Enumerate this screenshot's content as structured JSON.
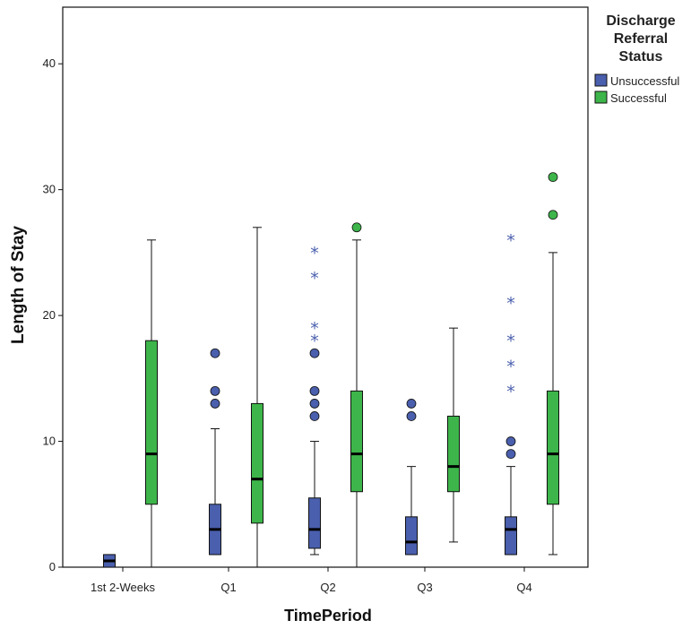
{
  "chart_data": {
    "type": "boxplot",
    "xlabel": "TimePeriod",
    "ylabel": "Length of Stay",
    "categories": [
      "1st 2-Weeks",
      "Q1",
      "Q2",
      "Q3",
      "Q4"
    ],
    "y_ticks": [
      0,
      10,
      20,
      30,
      40
    ],
    "ylim": [
      0,
      44.5
    ],
    "grid": false,
    "legend": {
      "title_lines": [
        "Discharge",
        "Referral",
        "Status"
      ],
      "placement": "right"
    },
    "series": [
      {
        "name": "Unsuccessful",
        "color": "#4a5fad",
        "boxes": [
          {
            "min": 0,
            "q1": 0,
            "median": 0.5,
            "q3": 1,
            "max": 1,
            "outliers": [],
            "extremes": []
          },
          {
            "min": 1,
            "q1": 1,
            "median": 3,
            "q3": 5,
            "max": 11,
            "outliers": [
              13,
              14,
              17
            ],
            "extremes": []
          },
          {
            "min": 1,
            "q1": 1.5,
            "median": 3,
            "q3": 5.5,
            "max": 10,
            "outliers": [
              12,
              13,
              14,
              17
            ],
            "extremes": [
              18,
              19,
              23,
              25
            ]
          },
          {
            "min": 1,
            "q1": 1,
            "median": 2,
            "q3": 4,
            "max": 8,
            "outliers": [
              12,
              13
            ],
            "extremes": []
          },
          {
            "min": 1,
            "q1": 1,
            "median": 3,
            "q3": 4,
            "max": 8,
            "outliers": [
              9,
              10
            ],
            "extremes": [
              14,
              16,
              18,
              21,
              26
            ]
          }
        ]
      },
      {
        "name": "Successful",
        "color": "#3db54a",
        "boxes": [
          {
            "min": 0,
            "q1": 5,
            "median": 9,
            "q3": 18,
            "max": 26,
            "outliers": [],
            "extremes": []
          },
          {
            "min": 0,
            "q1": 3.5,
            "median": 7,
            "q3": 13,
            "max": 27,
            "outliers": [],
            "extremes": []
          },
          {
            "min": 0,
            "q1": 6,
            "median": 9,
            "q3": 14,
            "max": 26,
            "outliers": [
              27
            ],
            "extremes": []
          },
          {
            "min": 2,
            "q1": 6,
            "median": 8,
            "q3": 12,
            "max": 19,
            "outliers": [],
            "extremes": []
          },
          {
            "min": 1,
            "q1": 5,
            "median": 9,
            "q3": 14,
            "max": 25,
            "outliers": [
              28,
              31
            ],
            "extremes": []
          }
        ]
      }
    ]
  }
}
